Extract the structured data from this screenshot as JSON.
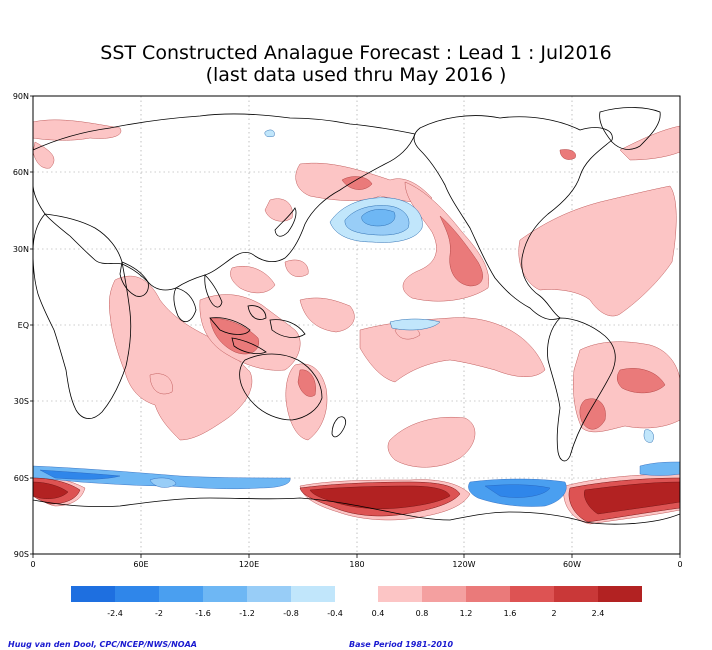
{
  "title_line1": "SST Constructed Analague Forecast : Lead 1 : Jul2016",
  "title_line2": "(last data used thru May 2016 )",
  "lat_labels": [
    "90N",
    "60N",
    "30N",
    "EQ",
    "30S",
    "60S",
    "90S"
  ],
  "lon_labels": [
    "0",
    "60E",
    "120E",
    "180",
    "120W",
    "60W",
    "0"
  ],
  "colorbar": {
    "ticks": [
      "-2.4",
      "-2",
      "-1.6",
      "-1.2",
      "-0.8",
      "-0.4",
      "0.4",
      "0.8",
      "1.2",
      "1.6",
      "2",
      "2.4"
    ],
    "negative_colors": [
      "#1e6fe0",
      "#2f86ea",
      "#4a9ff0",
      "#6eb7f4",
      "#98cdf7",
      "#c1e6fb"
    ],
    "positive_colors": [
      "#fcc5c5",
      "#f4a0a0",
      "#ea7a7a",
      "#dd5353",
      "#c93838",
      "#b22222"
    ]
  },
  "credit_left": "Huug van den Dool, CPC/NCEP/NWS/NOAA",
  "credit_right": "Base Period 1981-2010"
}
